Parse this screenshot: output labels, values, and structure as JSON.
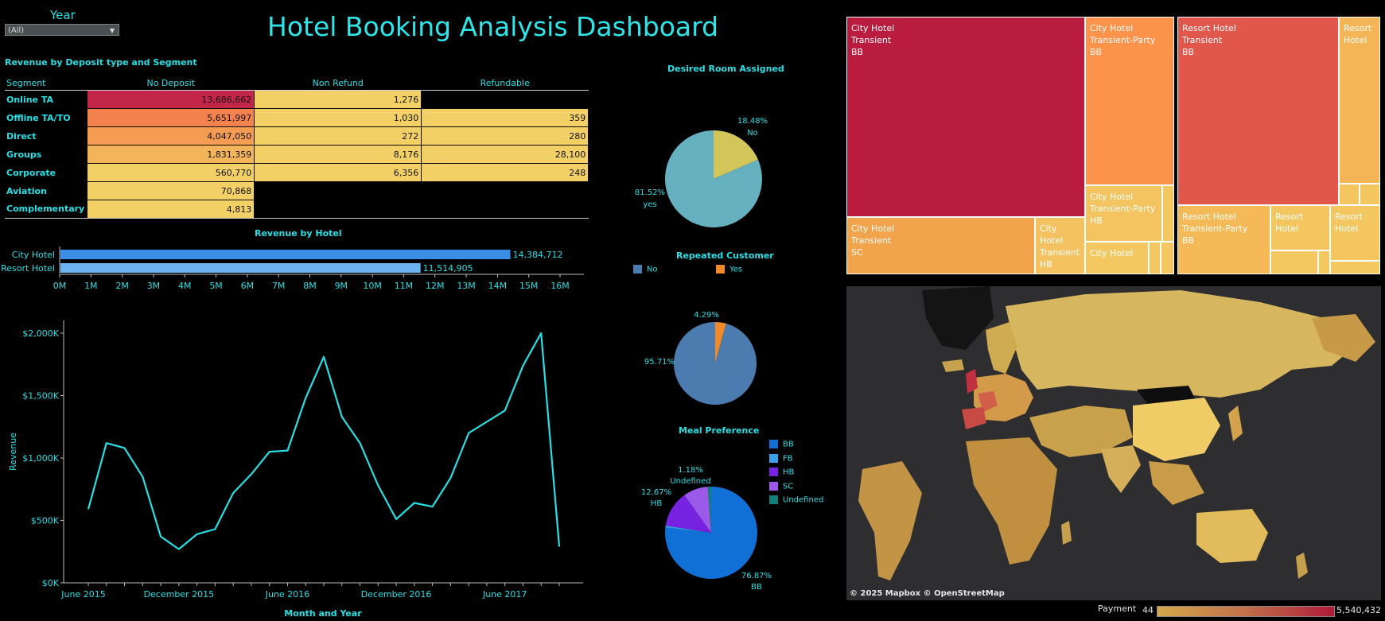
{
  "header": {
    "title": "Hotel Booking Analysis Dashboard"
  },
  "filter": {
    "label": "Year",
    "value": "(All)"
  },
  "colors": {
    "accent": "#26e0e6",
    "background": "#000000"
  },
  "chart_data": [
    {
      "id": "heatmap",
      "type": "table",
      "title": "Revenue by Deposit type and Segment",
      "row_header": "Segment",
      "columns": [
        "No Deposit",
        "Non Refund",
        "Refundable"
      ],
      "rows": [
        {
          "segment": "Online TA",
          "values": [
            "13,686,662",
            "1,276",
            ""
          ]
        },
        {
          "segment": "Offline TA/TO",
          "values": [
            "5,651,997",
            "1,030",
            "359"
          ]
        },
        {
          "segment": "Direct",
          "values": [
            "4,047,050",
            "272",
            "280"
          ]
        },
        {
          "segment": "Groups",
          "values": [
            "1,831,359",
            "8,176",
            "28,100"
          ]
        },
        {
          "segment": "Corporate",
          "values": [
            "560,770",
            "6,356",
            "248"
          ]
        },
        {
          "segment": "Aviation",
          "values": [
            "70,868",
            "",
            ""
          ]
        },
        {
          "segment": "Complementary",
          "values": [
            "4,813",
            "",
            ""
          ]
        }
      ]
    },
    {
      "id": "hotel_bar",
      "type": "bar",
      "title": "Revenue  by Hotel",
      "categories": [
        "City Hotel",
        "Resort Hotel"
      ],
      "values": [
        14384712,
        11514905
      ],
      "labels": [
        "14,384,712",
        "11,514,905"
      ],
      "colors": [
        "#3a8ee6",
        "#6ab2f0"
      ],
      "xlim": [
        0,
        16000000
      ],
      "ticks": [
        "0M",
        "1M",
        "2M",
        "3M",
        "4M",
        "5M",
        "6M",
        "7M",
        "8M",
        "9M",
        "10M",
        "11M",
        "12M",
        "13M",
        "14M",
        "15M",
        "16M"
      ]
    },
    {
      "id": "revenue_line",
      "type": "line",
      "xlabel": "Month and Year",
      "ylabel": "Revenue",
      "x_ticks": [
        "June 2015",
        "December 2015",
        "June 2016",
        "December 2016",
        "June 2017"
      ],
      "y_ticks": [
        "$0K",
        "$500K",
        "$1,000K",
        "$1,500K",
        "$2,000K"
      ],
      "ylim": [
        0,
        2000000
      ],
      "x": [
        "2015-07",
        "2015-08",
        "2015-09",
        "2015-10",
        "2015-11",
        "2015-12",
        "2016-01",
        "2016-02",
        "2016-03",
        "2016-04",
        "2016-05",
        "2016-06",
        "2016-07",
        "2016-08",
        "2016-09",
        "2016-10",
        "2016-11",
        "2016-12",
        "2017-01",
        "2017-02",
        "2017-03",
        "2017-04",
        "2017-05",
        "2017-06",
        "2017-07",
        "2017-08",
        "2017-09"
      ],
      "values": [
        590000,
        1120000,
        1080000,
        850000,
        370000,
        270000,
        390000,
        430000,
        720000,
        870000,
        1050000,
        1060000,
        1480000,
        1810000,
        1330000,
        1120000,
        780000,
        510000,
        640000,
        610000,
        840000,
        1200000,
        1290000,
        1380000,
        1740000,
        2000000,
        290000
      ],
      "color": "#26e0e6"
    },
    {
      "id": "room_pie",
      "type": "pie",
      "title": "Desired Room Assigned",
      "slices": [
        {
          "label": "No",
          "value": 18.48,
          "text": "18.48%",
          "color": "#d2c55a"
        },
        {
          "label": "yes",
          "value": 81.52,
          "text": "81.52%",
          "color": "#66b1c0"
        }
      ]
    },
    {
      "id": "repeat_pie",
      "type": "pie",
      "title": "Repeated Customer",
      "legend": [
        {
          "label": "No",
          "color": "#4c7bb0"
        },
        {
          "label": "Yes",
          "color": "#f0892a"
        }
      ],
      "slices": [
        {
          "label": "Yes",
          "value": 4.29,
          "text": "4.29%",
          "color": "#f0892a"
        },
        {
          "label": "No",
          "value": 95.71,
          "text": "95.71%",
          "color": "#4c7bb0"
        }
      ]
    },
    {
      "id": "meal_pie",
      "type": "pie",
      "title": "Meal Preference",
      "legend": [
        {
          "label": "BB",
          "color": "#1170d6"
        },
        {
          "label": "FB",
          "color": "#3aa0ea"
        },
        {
          "label": "HB",
          "color": "#7622e0"
        },
        {
          "label": "SC",
          "color": "#9c5ae8"
        },
        {
          "label": "Undefined",
          "color": "#12807a"
        }
      ],
      "slices": [
        {
          "label": "BB",
          "value": 76.87,
          "text": "76.87%",
          "color": "#1170d6"
        },
        {
          "label": "FB",
          "value": 0.6,
          "text": "",
          "color": "#3aa0ea"
        },
        {
          "label": "HB",
          "value": 12.67,
          "text": "12.67%",
          "color": "#7622e0"
        },
        {
          "label": "SC",
          "value": 8.68,
          "text": "",
          "color": "#9c5ae8"
        },
        {
          "label": "Undefined",
          "value": 1.18,
          "text": "1.18%",
          "color": "#12807a"
        }
      ]
    },
    {
      "id": "treemap",
      "type": "heatmap",
      "cells": [
        {
          "lines": [
            "City Hotel",
            "Transient",
            "BB"
          ],
          "color": "#b91c3e"
        },
        {
          "lines": [
            "City Hotel",
            "Transient",
            "SC"
          ],
          "color": "#f2a44c"
        },
        {
          "lines": [
            "City Hotel",
            "Transient",
            "HB"
          ],
          "color": "#f4c260"
        },
        {
          "lines": [
            "City Hotel",
            "Transient-Party",
            "BB"
          ],
          "color": "#fb934a"
        },
        {
          "lines": [
            "City Hotel",
            "Transient-Party",
            "HB"
          ],
          "color": "#f4c460"
        },
        {
          "lines": [
            "City Hotel"
          ],
          "color": "#f4c860"
        },
        {
          "lines": [
            "Resort Hotel",
            "Transient",
            "BB"
          ],
          "color": "#e2574c"
        },
        {
          "lines": [
            "Resort",
            "Hotel"
          ],
          "color": "#f4b557"
        },
        {
          "lines": [
            "Resort Hotel",
            "Transient-Party",
            "BB"
          ],
          "color": "#f4ba58"
        },
        {
          "lines": [
            "Resort",
            "Hotel"
          ],
          "color": "#f4c660"
        },
        {
          "lines": [
            "Resort",
            "Hotel"
          ],
          "color": "#f4c660"
        }
      ]
    },
    {
      "id": "map",
      "type": "heatmap",
      "attribution": "© 2025 Mapbox  © OpenStreetMap",
      "legend_label": "Payment",
      "min_label": "44",
      "max_label": "5,540,432",
      "color_low": "#d4a84a",
      "color_high": "#b01a3a"
    }
  ]
}
